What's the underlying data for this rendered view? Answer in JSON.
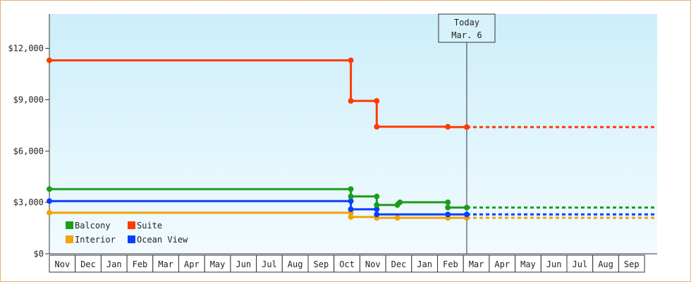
{
  "chart_data": {
    "type": "line",
    "step": true,
    "y_ticks": [
      {
        "value": 0,
        "label": "$0"
      },
      {
        "value": 3000,
        "label": "$3,000"
      },
      {
        "value": 6000,
        "label": "$6,000"
      },
      {
        "value": 9000,
        "label": "$9,000"
      },
      {
        "value": 12000,
        "label": "$12,000"
      }
    ],
    "ylim": [
      0,
      14000
    ],
    "months": [
      "Nov",
      "Dec",
      "Jan",
      "Feb",
      "Mar",
      "Apr",
      "May",
      "Jun",
      "Jul",
      "Aug",
      "Sep",
      "Oct",
      "Nov",
      "Dec",
      "Jan",
      "Feb",
      "Mar",
      "Apr",
      "May",
      "Jun",
      "Jul",
      "Aug",
      "Sep"
    ],
    "today": {
      "label": "Today",
      "date": "Mar. 6",
      "position": 16.13
    },
    "x_end": 23.4,
    "series": [
      {
        "name": "Balcony",
        "color": "#1a9e1a",
        "points": [
          [
            0,
            3780
          ],
          [
            11.65,
            3780
          ],
          [
            11.65,
            3350
          ],
          [
            12.65,
            3350
          ],
          [
            12.65,
            2850
          ],
          [
            13.45,
            2850
          ],
          [
            13.45,
            3010
          ],
          [
            15.4,
            3010
          ],
          [
            15.4,
            2700
          ],
          [
            16.13,
            2700
          ]
        ],
        "projection": 2700
      },
      {
        "name": "Suite",
        "color": "#ff3a00",
        "points": [
          [
            0,
            11300
          ],
          [
            11.65,
            11300
          ],
          [
            11.65,
            8930
          ],
          [
            12.65,
            8930
          ],
          [
            12.65,
            7420
          ],
          [
            15.4,
            7420
          ],
          [
            15.4,
            7400
          ],
          [
            16.13,
            7400
          ]
        ],
        "projection": 7400
      },
      {
        "name": "Interior",
        "color": "#f5a200",
        "points": [
          [
            0,
            2400
          ],
          [
            11.65,
            2400
          ],
          [
            11.65,
            2150
          ],
          [
            12.65,
            2150
          ],
          [
            12.65,
            2100
          ],
          [
            13.45,
            2100
          ],
          [
            15.4,
            2100
          ],
          [
            16.13,
            2100
          ]
        ],
        "projection": 2100
      },
      {
        "name": "Ocean View",
        "color": "#0a3dff",
        "points": [
          [
            0,
            3080
          ],
          [
            11.65,
            3080
          ],
          [
            11.65,
            2600
          ],
          [
            12.65,
            2600
          ],
          [
            12.65,
            2300
          ],
          [
            15.4,
            2300
          ],
          [
            16.13,
            2300
          ]
        ],
        "projection": 2300
      }
    ],
    "markers": {
      "Balcony": [
        [
          0,
          3780
        ],
        [
          11.65,
          3780
        ],
        [
          11.65,
          3350
        ],
        [
          12.65,
          3350
        ],
        [
          12.65,
          2850
        ],
        [
          13.45,
          2850
        ],
        [
          13.55,
          3010
        ],
        [
          15.4,
          3010
        ],
        [
          15.4,
          2700
        ],
        [
          16.13,
          2700
        ]
      ],
      "Suite": [
        [
          0,
          11300
        ],
        [
          11.65,
          11300
        ],
        [
          11.65,
          8930
        ],
        [
          12.65,
          8930
        ],
        [
          12.65,
          7420
        ],
        [
          15.4,
          7420
        ],
        [
          16.13,
          7400
        ]
      ],
      "Interior": [
        [
          0,
          2400
        ],
        [
          11.65,
          2400
        ],
        [
          11.65,
          2150
        ],
        [
          12.65,
          2100
        ],
        [
          13.45,
          2100
        ],
        [
          15.4,
          2100
        ],
        [
          16.13,
          2100
        ]
      ],
      "Ocean View": [
        [
          0,
          3080
        ],
        [
          11.65,
          3080
        ],
        [
          11.65,
          2600
        ],
        [
          12.65,
          2600
        ],
        [
          12.65,
          2300
        ],
        [
          15.4,
          2300
        ],
        [
          16.13,
          2300
        ]
      ]
    },
    "legend": [
      {
        "name": "Balcony",
        "color": "#1a9e1a"
      },
      {
        "name": "Suite",
        "color": "#ff3a00"
      },
      {
        "name": "Interior",
        "color": "#f5a200"
      },
      {
        "name": "Ocean View",
        "color": "#0a3dff"
      }
    ],
    "legend_position": "bottom-left",
    "background": {
      "top": "#cdeefa",
      "bottom": "#f2fbff"
    }
  }
}
